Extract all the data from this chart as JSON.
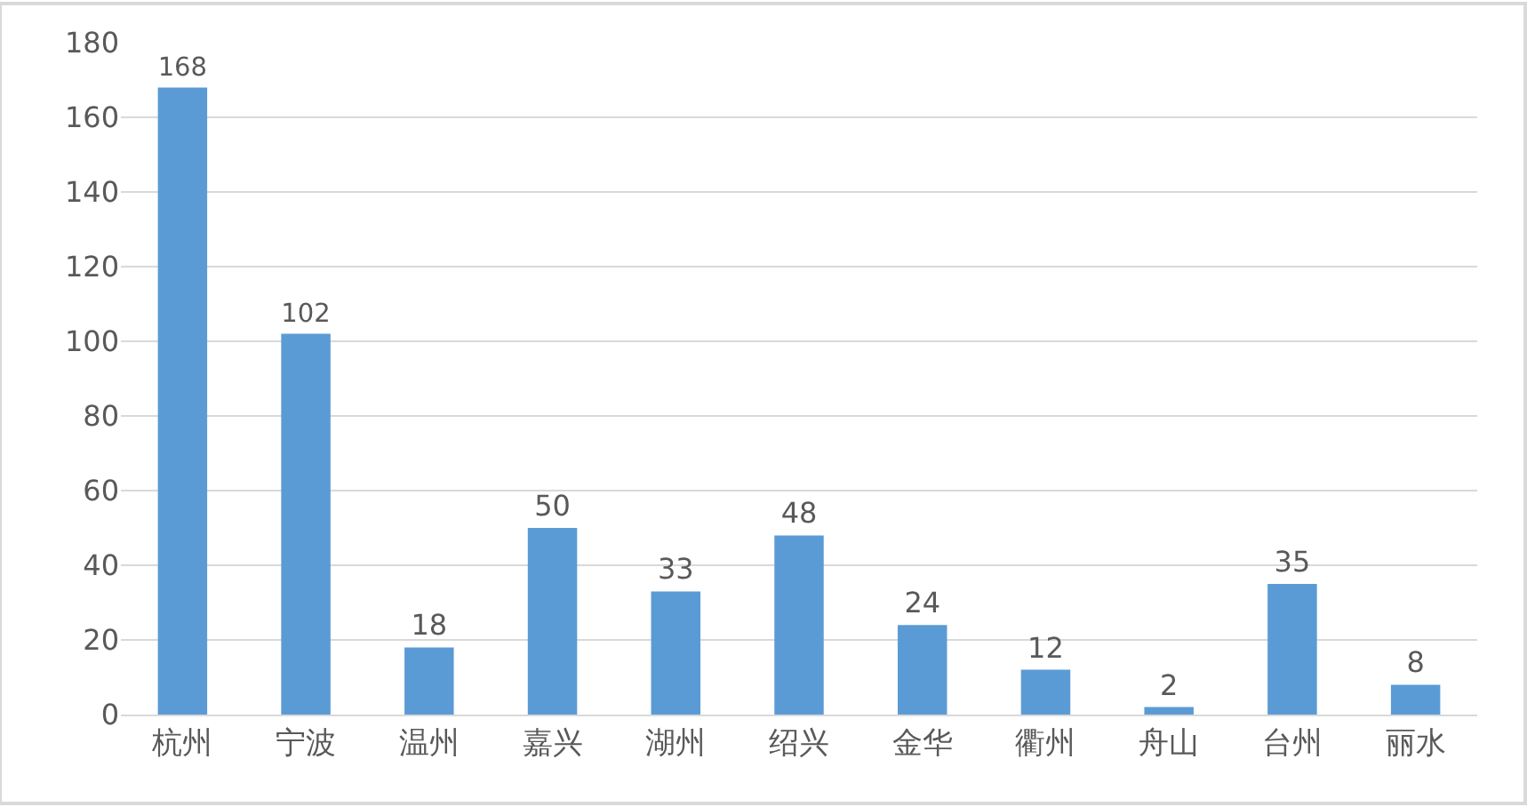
{
  "chart_data": {
    "type": "bar",
    "categories": [
      "杭州",
      "宁波",
      "温州",
      "嘉兴",
      "湖州",
      "绍兴",
      "金华",
      "衢州",
      "舟山",
      "台州",
      "丽水"
    ],
    "values": [
      168,
      102,
      18,
      50,
      33,
      48,
      24,
      12,
      2,
      35,
      8
    ],
    "color": "#5b9bd5",
    "ylim": [
      0,
      180
    ],
    "yticks": [
      0,
      20,
      40,
      60,
      80,
      100,
      120,
      140,
      160,
      180
    ],
    "grid": "y",
    "data_labels": true
  }
}
